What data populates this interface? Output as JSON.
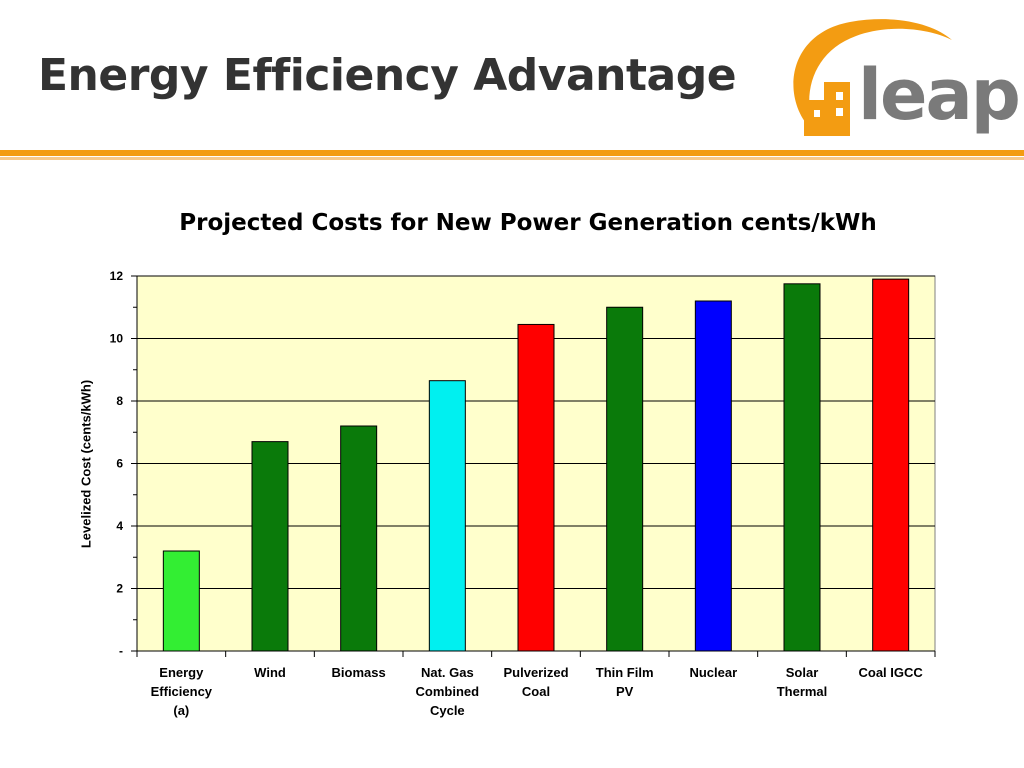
{
  "slide": {
    "title": "Energy Efficiency Advantage"
  },
  "logo": {
    "wordmark": "leap",
    "colors": {
      "orange": "#f39c12",
      "gray": "#7a7a7a"
    }
  },
  "chart_data": {
    "type": "bar",
    "title": "Projected Costs for New Power Generation cents/kWh",
    "xlabel": "",
    "ylabel": "Levelized Cost (cents/kWh)",
    "ylim": [
      0,
      12
    ],
    "yticks": [
      {
        "value": 0,
        "label": "-"
      },
      {
        "value": 2,
        "label": "2"
      },
      {
        "value": 4,
        "label": "4"
      },
      {
        "value": 6,
        "label": "6"
      },
      {
        "value": 8,
        "label": "8"
      },
      {
        "value": 10,
        "label": "10"
      },
      {
        "value": 12,
        "label": "12"
      }
    ],
    "grid": true,
    "plot_background": "#ffffcc",
    "categories": [
      "Energy\nEfficiency\n(a)",
      "Wind",
      "Biomass",
      "Nat. Gas\nCombined\nCycle",
      "Pulverized\nCoal",
      "Thin Film\nPV",
      "Nuclear",
      "Solar\nThermal",
      "Coal IGCC"
    ],
    "values": [
      3.2,
      6.7,
      7.2,
      8.65,
      10.45,
      11.0,
      11.2,
      11.75,
      11.9
    ],
    "colors": [
      "#33ee33",
      "#0a7a0a",
      "#0a7a0a",
      "#00f0f0",
      "#ff0000",
      "#0a7a0a",
      "#0000ff",
      "#0a7a0a",
      "#ff0000"
    ]
  }
}
